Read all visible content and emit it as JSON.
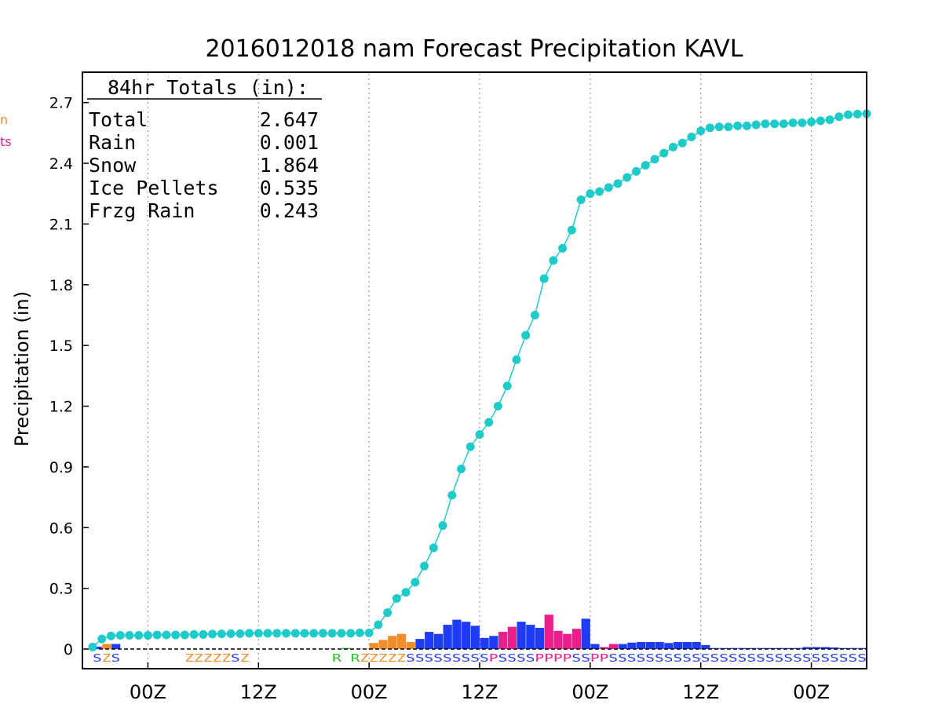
{
  "chart_data": {
    "type": "bar",
    "title": "2016012018 nam Forecast Precipitation KAVL",
    "ylabel": "Precipitation (in)",
    "ylim": [
      0,
      2.85
    ],
    "yticks": [
      0,
      0.3,
      0.6,
      0.9,
      1.2,
      1.5,
      1.8,
      2.1,
      2.4,
      2.7
    ],
    "ytick_labels": [
      "0",
      "0.3",
      "0.6",
      "0.9",
      "1.2",
      "1.5",
      "1.8",
      "2.1",
      "2.4",
      "2.7"
    ],
    "xlim": [
      0,
      84
    ],
    "xticks": [
      6,
      18,
      30,
      42,
      54,
      66,
      78
    ],
    "xtick_labels": [
      "00Z",
      "12Z",
      "00Z",
      "12Z",
      "00Z",
      "12Z",
      "00Z"
    ],
    "grid": true,
    "colors": {
      "accumulated": "#1ecbc8",
      "Rain": "#22c322",
      "Snow": "#1f3cf5",
      "Ice Pellets": "#ec1e8c",
      "Frzg Rain": "#f28c28"
    },
    "totals": {
      "heading": "84hr Totals (in):",
      "rows": [
        {
          "label": "Total",
          "value": "2.647"
        },
        {
          "label": "Rain",
          "value": "0.001"
        },
        {
          "label": "Snow",
          "value": "1.864"
        },
        {
          "label": "Ice Pellets",
          "value": "0.535"
        },
        {
          "label": "Frzg Rain",
          "value": "0.243"
        }
      ]
    },
    "edge_labels": [
      {
        "text": "n",
        "color": "#f28c28"
      },
      {
        "text": "ts",
        "color": "#ec1e8c"
      }
    ],
    "accumulated": {
      "x": [
        0,
        1,
        2,
        3,
        4,
        5,
        6,
        7,
        8,
        9,
        10,
        11,
        12,
        13,
        14,
        15,
        16,
        17,
        18,
        19,
        20,
        21,
        22,
        23,
        24,
        25,
        26,
        27,
        28,
        29,
        30,
        31,
        32,
        33,
        34,
        35,
        36,
        37,
        38,
        39,
        40,
        41,
        42,
        43,
        44,
        45,
        46,
        47,
        48,
        49,
        50,
        51,
        52,
        53,
        54,
        55,
        56,
        57,
        58,
        59,
        60,
        61,
        62,
        63,
        64,
        65,
        66,
        67,
        68,
        69,
        70,
        71,
        72,
        73,
        74,
        75,
        76,
        77,
        78,
        79,
        80,
        81,
        82,
        83,
        84
      ],
      "y": [
        0.01,
        0.05,
        0.065,
        0.068,
        0.068,
        0.068,
        0.068,
        0.07,
        0.07,
        0.07,
        0.07,
        0.072,
        0.072,
        0.074,
        0.075,
        0.076,
        0.076,
        0.078,
        0.078,
        0.078,
        0.078,
        0.078,
        0.078,
        0.078,
        0.078,
        0.078,
        0.078,
        0.078,
        0.078,
        0.08,
        0.08,
        0.12,
        0.18,
        0.25,
        0.28,
        0.33,
        0.41,
        0.5,
        0.61,
        0.76,
        0.89,
        1.0,
        1.06,
        1.12,
        1.2,
        1.3,
        1.43,
        1.55,
        1.65,
        1.83,
        1.92,
        1.98,
        2.07,
        2.22,
        2.25,
        2.26,
        2.28,
        2.3,
        2.33,
        2.36,
        2.39,
        2.42,
        2.45,
        2.48,
        2.5,
        2.53,
        2.56,
        2.575,
        2.58,
        2.58,
        2.585,
        2.585,
        2.59,
        2.595,
        2.595,
        2.595,
        2.6,
        2.6,
        2.605,
        2.61,
        2.615,
        2.63,
        2.64,
        2.643,
        2.645
      ]
    },
    "hourly": {
      "x": [
        0,
        1,
        2,
        3,
        4,
        5,
        6,
        7,
        8,
        9,
        10,
        11,
        12,
        13,
        14,
        15,
        16,
        17,
        18,
        19,
        20,
        21,
        22,
        23,
        24,
        25,
        26,
        27,
        28,
        29,
        30,
        31,
        32,
        33,
        34,
        35,
        36,
        37,
        38,
        39,
        40,
        41,
        42,
        43,
        44,
        45,
        46,
        47,
        48,
        49,
        50,
        51,
        52,
        53,
        54,
        55,
        56,
        57,
        58,
        59,
        60,
        61,
        62,
        63,
        64,
        65,
        66,
        67,
        68,
        69,
        70,
        71,
        72,
        73,
        74,
        75,
        76,
        77,
        78,
        79,
        80,
        81,
        82,
        83
      ],
      "y": [
        0.012,
        0.025,
        0.025,
        0,
        0,
        0,
        0,
        0,
        0,
        0,
        0,
        0,
        0,
        0,
        0,
        0,
        0.002,
        0,
        0,
        0,
        0,
        0,
        0,
        0,
        0,
        0.002,
        0,
        0.005,
        0,
        0.002,
        0.03,
        0.045,
        0.065,
        0.075,
        0.035,
        0.05,
        0.085,
        0.075,
        0.12,
        0.145,
        0.135,
        0.115,
        0.055,
        0.065,
        0.085,
        0.11,
        0.135,
        0.12,
        0.105,
        0.17,
        0.09,
        0.075,
        0.1,
        0.15,
        0.025,
        0.01,
        0.025,
        0.025,
        0.032,
        0.035,
        0.035,
        0.035,
        0.03,
        0.035,
        0.035,
        0.035,
        0.02,
        0.005,
        0.005,
        0.005,
        0.005,
        0.005,
        0.005,
        0.005,
        0.005,
        0.005,
        0.005,
        0.01,
        0.01,
        0.01,
        0.008,
        0.005,
        0.005,
        0.005
      ],
      "ptype": [
        "Snow",
        "Frzg Rain",
        "Snow",
        "Snow",
        "Snow",
        "Snow",
        "Snow",
        "Snow",
        "Snow",
        "Snow",
        "Frzg Rain",
        "Frzg Rain",
        "Frzg Rain",
        "Frzg Rain",
        "Frzg Rain",
        "Snow",
        "Frzg Rain",
        "Frzg Rain",
        "Frzg Rain",
        "Frzg Rain",
        "Frzg Rain",
        "Frzg Rain",
        "Frzg Rain",
        "Frzg Rain",
        "Frzg Rain",
        "Rain",
        "Frzg Rain",
        "Rain",
        "Frzg Rain",
        "Frzg Rain",
        "Frzg Rain",
        "Frzg Rain",
        "Frzg Rain",
        "Frzg Rain",
        "Frzg Rain",
        "Snow",
        "Snow",
        "Snow",
        "Snow",
        "Snow",
        "Snow",
        "Snow",
        "Snow",
        "Snow",
        "Ice Pellets",
        "Ice Pellets",
        "Snow",
        "Snow",
        "Snow",
        "Ice Pellets",
        "Ice Pellets",
        "Ice Pellets",
        "Ice Pellets",
        "Snow",
        "Snow",
        "Ice Pellets",
        "Ice Pellets",
        "Snow",
        "Snow",
        "Snow",
        "Snow",
        "Snow",
        "Snow",
        "Snow",
        "Snow",
        "Snow",
        "Snow",
        "Snow",
        "Snow",
        "Snow",
        "Snow",
        "Snow",
        "Snow",
        "Snow",
        "Snow",
        "Snow",
        "Snow",
        "Snow",
        "Snow",
        "Snow",
        "Snow",
        "Snow",
        "Snow",
        "Snow"
      ]
    },
    "ptype_codes": [
      {
        "text": "S",
        "x": 0,
        "color": "#1f3cf5"
      },
      {
        "text": "Z",
        "x": 1,
        "color": "#f28c28"
      },
      {
        "text": "S",
        "x": 2,
        "color": "#1f3cf5"
      },
      {
        "text": "ZZZZZ",
        "x": 10,
        "color": "#f28c28"
      },
      {
        "text": "S",
        "x": 15,
        "color": "#1f3cf5"
      },
      {
        "text": "Z",
        "x": 16,
        "color": "#f28c28"
      },
      {
        "text": "R",
        "x": 26,
        "color": "#22c322"
      },
      {
        "text": "R",
        "x": 28,
        "color": "#22c322"
      },
      {
        "text": "ZZZZZ",
        "x": 29,
        "color": "#f28c28"
      },
      {
        "text": "SSSSSSSSS",
        "x": 34,
        "color": "#1f3cf5"
      },
      {
        "text": "P",
        "x": 43,
        "color": "#ec1e8c"
      },
      {
        "text": "SSSS",
        "x": 44,
        "color": "#1f3cf5"
      },
      {
        "text": "PPPP",
        "x": 48,
        "color": "#ec1e8c"
      },
      {
        "text": "SS",
        "x": 52,
        "color": "#1f3cf5"
      },
      {
        "text": "PP",
        "x": 54,
        "color": "#ec1e8c"
      },
      {
        "text": "SSSSSSSSSSSSSSSSSSSSSSSSSSSS",
        "x": 56,
        "color": "#1f3cf5"
      }
    ]
  }
}
